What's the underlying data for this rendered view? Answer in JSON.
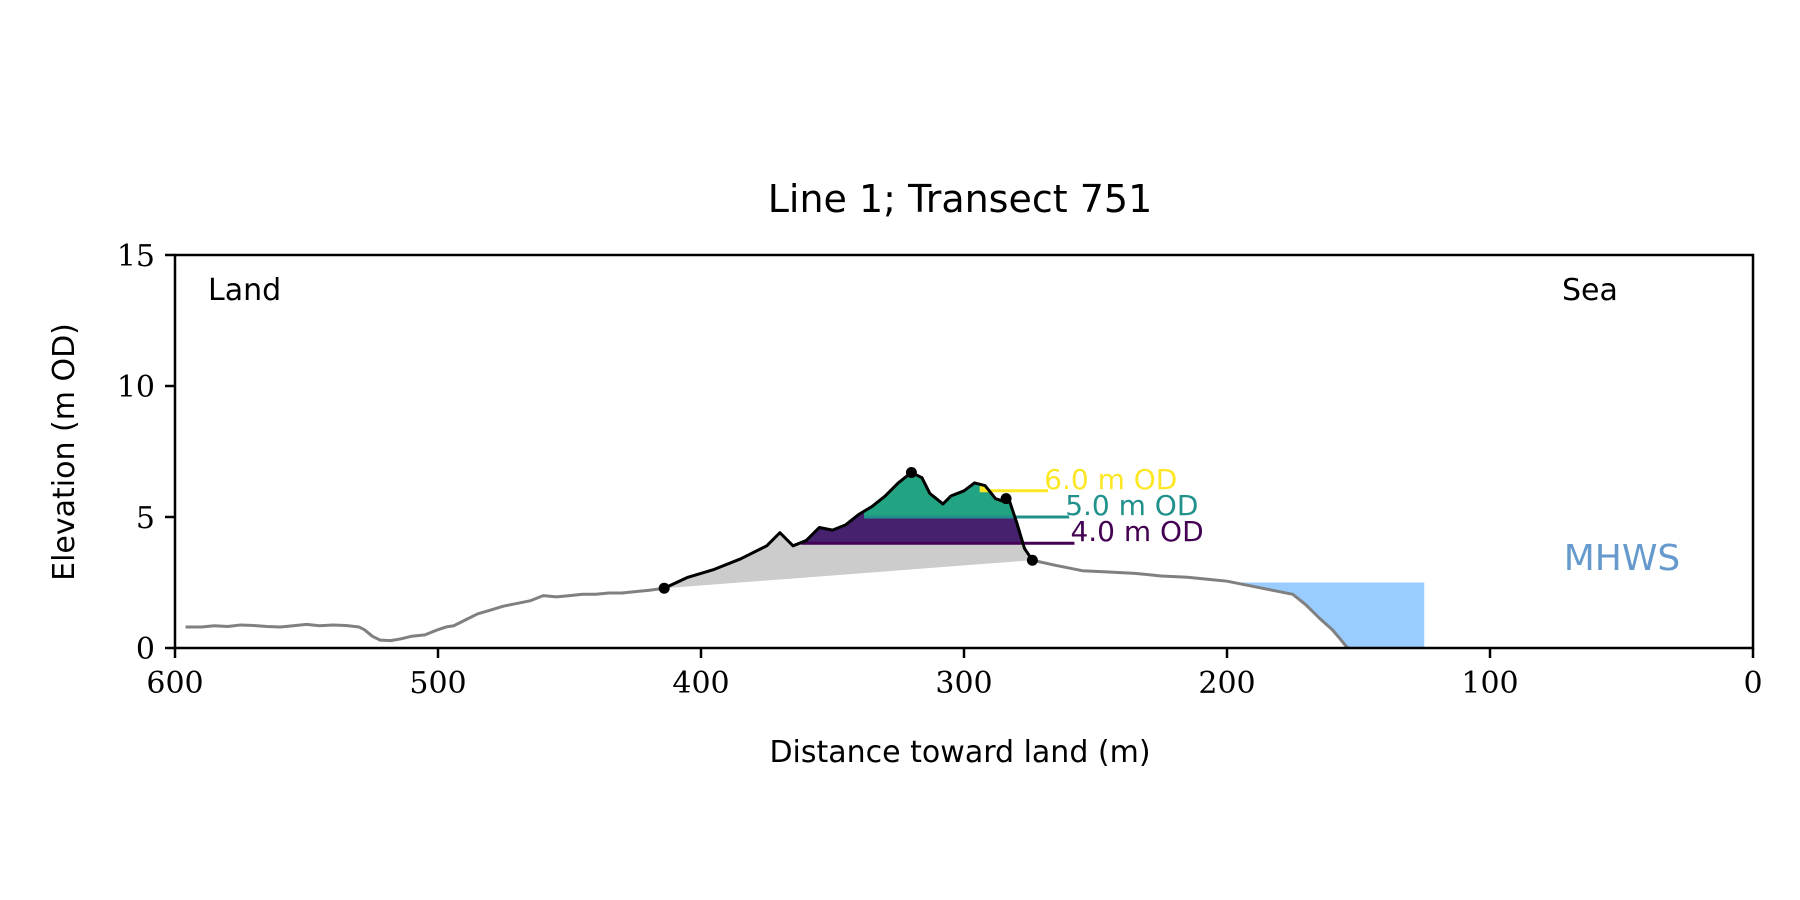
{
  "chart_data": {
    "type": "area",
    "title": "Line 1; Transect 751",
    "xlabel": "Distance toward land (m)",
    "ylabel": "Elevation (m OD)",
    "xlim": [
      600,
      0
    ],
    "ylim": [
      0,
      15
    ],
    "x_ticks": [
      600,
      500,
      400,
      300,
      200,
      100,
      0
    ],
    "y_ticks": [
      0,
      5,
      10,
      15
    ],
    "corner_labels": {
      "left": "Land",
      "right": "Sea"
    },
    "grid": false,
    "colors": {
      "profile": "#808080",
      "dune": "#000000",
      "base_fill": "#cccccc",
      "level_4": "#440154",
      "level_5": "#21918c",
      "level_6": "#fde725",
      "fill_4": "#46226e",
      "fill_5": "#22a483",
      "fill_6": "#fde725",
      "mhws_fill": "#99ccff",
      "mhws_text": "#6699cc"
    },
    "profile": {
      "x": [
        596,
        590,
        585,
        580,
        575,
        570,
        565,
        560,
        555,
        550,
        545,
        540,
        535,
        530,
        528,
        525,
        522,
        518,
        514,
        510,
        505,
        500,
        497,
        494,
        490,
        485,
        480,
        475,
        470,
        465,
        460,
        455,
        450,
        445,
        440,
        435,
        430,
        425,
        420,
        414
      ],
      "y": [
        0.8,
        0.8,
        0.85,
        0.82,
        0.88,
        0.86,
        0.82,
        0.8,
        0.85,
        0.9,
        0.85,
        0.88,
        0.86,
        0.8,
        0.7,
        0.45,
        0.3,
        0.28,
        0.35,
        0.45,
        0.5,
        0.7,
        0.8,
        0.85,
        1.05,
        1.3,
        1.45,
        1.6,
        1.7,
        1.8,
        2.0,
        1.95,
        2.0,
        2.05,
        2.05,
        2.1,
        2.1,
        2.15,
        2.2,
        2.28
      ]
    },
    "dune_crest": {
      "x": [
        414,
        405,
        395,
        385,
        375,
        370,
        365,
        360,
        355,
        350,
        345,
        340,
        335,
        330,
        325,
        320,
        316,
        313,
        308,
        305,
        300,
        296,
        292,
        288,
        285,
        283,
        280,
        277,
        274
      ],
      "y": [
        2.28,
        2.7,
        3.0,
        3.4,
        3.9,
        4.4,
        3.9,
        4.1,
        4.6,
        4.5,
        4.7,
        5.1,
        5.4,
        5.8,
        6.3,
        6.7,
        6.5,
        5.9,
        5.5,
        5.8,
        6.0,
        6.3,
        6.2,
        5.7,
        5.6,
        5.7,
        4.8,
        3.8,
        3.35
      ]
    },
    "seaward": {
      "x": [
        274,
        265,
        255,
        245,
        235,
        225,
        215,
        205,
        200,
        195,
        190,
        185,
        180,
        175,
        170,
        168,
        165,
        160,
        157,
        155,
        154
      ],
      "y": [
        3.35,
        3.15,
        2.95,
        2.9,
        2.85,
        2.75,
        2.7,
        2.6,
        2.55,
        2.45,
        2.35,
        2.25,
        2.15,
        2.05,
        1.65,
        1.45,
        1.15,
        0.7,
        0.35,
        0.1,
        0.0
      ]
    },
    "dune_points": {
      "x": [
        414,
        320,
        284,
        274
      ],
      "y": [
        2.28,
        6.7,
        5.7,
        3.35
      ]
    },
    "base_line": {
      "x": [
        414,
        274
      ],
      "y": [
        2.28,
        3.35
      ]
    },
    "levels": [
      {
        "value": 4.0,
        "label": "4.0 m OD",
        "extent": [
          362,
          275
        ],
        "line_end": 258
      },
      {
        "value": 5.0,
        "label": "5.0 m OD",
        "extent": [
          338,
          281
        ],
        "line_end": 260
      },
      {
        "value": 6.0,
        "label": "6.0 m OD",
        "extent": [
          294,
          286
        ],
        "line_end": 268
      }
    ],
    "mhws": {
      "label": "MHWS",
      "value": 2.5,
      "x_range": [
        200,
        125
      ]
    }
  }
}
